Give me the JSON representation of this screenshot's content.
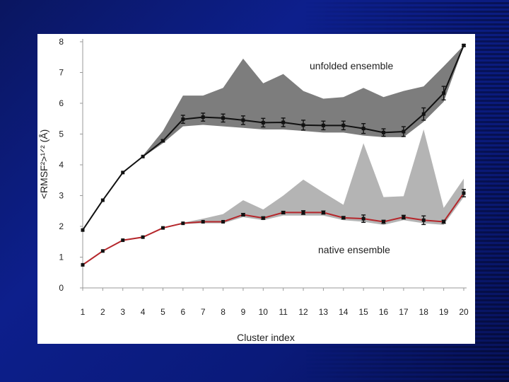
{
  "chart_data": {
    "type": "line",
    "xlabel": "Cluster index",
    "ylabel": "<RMSF²>¹ᐟ² (Å)",
    "ylim": [
      0,
      8
    ],
    "yticks": [
      0,
      1,
      2,
      3,
      4,
      5,
      6,
      7,
      8
    ],
    "x": [
      1,
      2,
      3,
      4,
      5,
      6,
      7,
      8,
      9,
      10,
      11,
      12,
      13,
      14,
      15,
      16,
      17,
      18,
      19,
      20
    ],
    "grid": false,
    "annotations": [
      "unfolded ensemble",
      "native ensemble"
    ],
    "series": [
      {
        "color": "#111111",
        "values": [
          1.88,
          2.85,
          3.75,
          4.27,
          4.78,
          5.48,
          5.55,
          5.52,
          5.45,
          5.37,
          5.38,
          5.29,
          5.28,
          5.28,
          5.18,
          5.05,
          5.08,
          5.65,
          6.33,
          7.88
        ],
        "errors": [
          0,
          0,
          0,
          0,
          0.04,
          0.13,
          0.13,
          0.13,
          0.14,
          0.14,
          0.14,
          0.16,
          0.14,
          0.14,
          0.16,
          0.12,
          0.16,
          0.2,
          0.22,
          0.03
        ],
        "band_upper": [
          1.88,
          2.85,
          3.75,
          4.3,
          5.1,
          6.25,
          6.25,
          6.5,
          7.45,
          6.65,
          6.95,
          6.4,
          6.15,
          6.2,
          6.5,
          6.2,
          6.4,
          6.55,
          7.2,
          7.88
        ],
        "band_lower": [
          1.88,
          2.85,
          3.75,
          4.25,
          4.7,
          5.25,
          5.3,
          5.25,
          5.2,
          5.15,
          5.15,
          5.1,
          5.05,
          5.05,
          4.95,
          4.9,
          4.9,
          5.4,
          6.05,
          7.85
        ],
        "band_color": "#7d7d7d"
      },
      {
        "color": "#b5262b",
        "values": [
          0.75,
          1.2,
          1.55,
          1.65,
          1.95,
          2.1,
          2.15,
          2.15,
          2.38,
          2.27,
          2.45,
          2.45,
          2.45,
          2.28,
          2.25,
          2.15,
          2.3,
          2.2,
          2.15,
          3.08
        ],
        "errors": [
          0,
          0,
          0,
          0,
          0,
          0,
          0,
          0,
          0.04,
          0.04,
          0.04,
          0.06,
          0.05,
          0.04,
          0.12,
          0.05,
          0.06,
          0.14,
          0.05,
          0.12
        ],
        "band_upper": [
          0.75,
          1.2,
          1.55,
          1.65,
          1.95,
          2.12,
          2.25,
          2.4,
          2.85,
          2.55,
          3.0,
          3.52,
          3.1,
          2.7,
          4.7,
          2.95,
          2.98,
          5.15,
          2.6,
          3.55
        ],
        "band_lower": [
          0.75,
          1.2,
          1.55,
          1.65,
          1.95,
          2.08,
          2.1,
          2.1,
          2.3,
          2.2,
          2.35,
          2.35,
          2.35,
          2.2,
          2.15,
          2.05,
          2.2,
          2.1,
          2.05,
          2.95
        ],
        "band_color": "#b4b4b4"
      }
    ]
  }
}
